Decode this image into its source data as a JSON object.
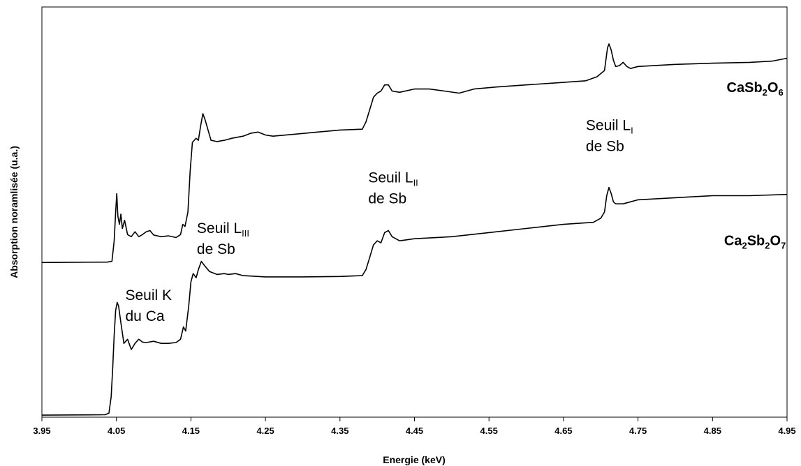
{
  "chart_data": {
    "type": "line",
    "title": "",
    "xlabel": "Energie (keV)",
    "ylabel": "Absorption noramlisée (u.a.)",
    "xlim": [
      3.95,
      4.95
    ],
    "ylim": [
      0,
      1
    ],
    "x_ticks": [
      "3.95",
      "4.05",
      "4.15",
      "4.25",
      "4.35",
      "4.45",
      "4.55",
      "4.65",
      "4.75",
      "4.85",
      "4.95"
    ],
    "grid": false,
    "y_tick_labels": false,
    "series": [
      {
        "name": "CaSb2O6",
        "label_parts": [
          [
            "CaSb",
            ""
          ],
          [
            "2",
            "sub"
          ],
          [
            "O",
            ""
          ],
          [
            "6",
            "sub"
          ]
        ],
        "points": [
          [
            3.95,
            0.377
          ],
          [
            4.038,
            0.378
          ],
          [
            4.044,
            0.38
          ],
          [
            4.047,
            0.43
          ],
          [
            4.049,
            0.5
          ],
          [
            4.0505,
            0.545
          ],
          [
            4.052,
            0.49
          ],
          [
            4.054,
            0.47
          ],
          [
            4.056,
            0.495
          ],
          [
            4.058,
            0.46
          ],
          [
            4.061,
            0.48
          ],
          [
            4.065,
            0.445
          ],
          [
            4.07,
            0.44
          ],
          [
            4.075,
            0.452
          ],
          [
            4.08,
            0.44
          ],
          [
            4.085,
            0.445
          ],
          [
            4.09,
            0.452
          ],
          [
            4.095,
            0.455
          ],
          [
            4.1,
            0.444
          ],
          [
            4.11,
            0.44
          ],
          [
            4.12,
            0.442
          ],
          [
            4.13,
            0.438
          ],
          [
            4.136,
            0.445
          ],
          [
            4.139,
            0.47
          ],
          [
            4.142,
            0.465
          ],
          [
            4.146,
            0.5
          ],
          [
            4.149,
            0.6
          ],
          [
            4.152,
            0.67
          ],
          [
            4.157,
            0.68
          ],
          [
            4.16,
            0.675
          ],
          [
            4.163,
            0.71
          ],
          [
            4.166,
            0.74
          ],
          [
            4.169,
            0.725
          ],
          [
            4.173,
            0.7
          ],
          [
            4.177,
            0.675
          ],
          [
            4.185,
            0.672
          ],
          [
            4.195,
            0.675
          ],
          [
            4.205,
            0.68
          ],
          [
            4.22,
            0.685
          ],
          [
            4.23,
            0.692
          ],
          [
            4.24,
            0.695
          ],
          [
            4.25,
            0.688
          ],
          [
            4.26,
            0.685
          ],
          [
            4.29,
            0.69
          ],
          [
            4.32,
            0.695
          ],
          [
            4.35,
            0.7
          ],
          [
            4.38,
            0.702
          ],
          [
            4.385,
            0.72
          ],
          [
            4.39,
            0.75
          ],
          [
            4.395,
            0.78
          ],
          [
            4.4,
            0.79
          ],
          [
            4.405,
            0.795
          ],
          [
            4.41,
            0.81
          ],
          [
            4.415,
            0.81
          ],
          [
            4.42,
            0.795
          ],
          [
            4.43,
            0.792
          ],
          [
            4.45,
            0.8
          ],
          [
            4.47,
            0.8
          ],
          [
            4.49,
            0.795
          ],
          [
            4.51,
            0.79
          ],
          [
            4.53,
            0.8
          ],
          [
            4.56,
            0.805
          ],
          [
            4.6,
            0.81
          ],
          [
            4.64,
            0.815
          ],
          [
            4.68,
            0.82
          ],
          [
            4.695,
            0.83
          ],
          [
            4.705,
            0.845
          ],
          [
            4.709,
            0.9
          ],
          [
            4.711,
            0.91
          ],
          [
            4.714,
            0.895
          ],
          [
            4.717,
            0.87
          ],
          [
            4.72,
            0.855
          ],
          [
            4.725,
            0.857
          ],
          [
            4.73,
            0.865
          ],
          [
            4.735,
            0.855
          ],
          [
            4.74,
            0.85
          ],
          [
            4.75,
            0.855
          ],
          [
            4.8,
            0.86
          ],
          [
            4.85,
            0.863
          ],
          [
            4.9,
            0.865
          ],
          [
            4.93,
            0.868
          ],
          [
            4.95,
            0.875
          ]
        ]
      },
      {
        "name": "Ca2Sb2O7",
        "label_parts": [
          [
            "Ca",
            ""
          ],
          [
            "2",
            "sub"
          ],
          [
            "Sb",
            ""
          ],
          [
            "2",
            "sub"
          ],
          [
            "O",
            ""
          ],
          [
            "7",
            "sub"
          ]
        ],
        "points": [
          [
            3.95,
            0.005
          ],
          [
            4.035,
            0.006
          ],
          [
            4.04,
            0.01
          ],
          [
            4.043,
            0.05
          ],
          [
            4.045,
            0.12
          ],
          [
            4.047,
            0.2
          ],
          [
            4.049,
            0.26
          ],
          [
            4.051,
            0.28
          ],
          [
            4.053,
            0.27
          ],
          [
            4.056,
            0.23
          ],
          [
            4.06,
            0.18
          ],
          [
            4.065,
            0.19
          ],
          [
            4.07,
            0.165
          ],
          [
            4.075,
            0.18
          ],
          [
            4.08,
            0.19
          ],
          [
            4.085,
            0.183
          ],
          [
            4.09,
            0.182
          ],
          [
            4.1,
            0.185
          ],
          [
            4.11,
            0.18
          ],
          [
            4.12,
            0.18
          ],
          [
            4.13,
            0.182
          ],
          [
            4.136,
            0.19
          ],
          [
            4.14,
            0.22
          ],
          [
            4.143,
            0.21
          ],
          [
            4.147,
            0.27
          ],
          [
            4.15,
            0.33
          ],
          [
            4.153,
            0.35
          ],
          [
            4.157,
            0.34
          ],
          [
            4.16,
            0.36
          ],
          [
            4.164,
            0.38
          ],
          [
            4.168,
            0.37
          ],
          [
            4.175,
            0.355
          ],
          [
            4.185,
            0.348
          ],
          [
            4.195,
            0.35
          ],
          [
            4.2,
            0.348
          ],
          [
            4.21,
            0.35
          ],
          [
            4.22,
            0.345
          ],
          [
            4.25,
            0.342
          ],
          [
            4.3,
            0.342
          ],
          [
            4.35,
            0.343
          ],
          [
            4.38,
            0.345
          ],
          [
            4.385,
            0.36
          ],
          [
            4.39,
            0.39
          ],
          [
            4.395,
            0.42
          ],
          [
            4.4,
            0.43
          ],
          [
            4.405,
            0.425
          ],
          [
            4.41,
            0.45
          ],
          [
            4.415,
            0.455
          ],
          [
            4.42,
            0.44
          ],
          [
            4.43,
            0.43
          ],
          [
            4.45,
            0.435
          ],
          [
            4.5,
            0.44
          ],
          [
            4.55,
            0.45
          ],
          [
            4.6,
            0.46
          ],
          [
            4.65,
            0.47
          ],
          [
            4.69,
            0.475
          ],
          [
            4.7,
            0.485
          ],
          [
            4.705,
            0.5
          ],
          [
            4.708,
            0.54
          ],
          [
            4.711,
            0.56
          ],
          [
            4.714,
            0.545
          ],
          [
            4.717,
            0.525
          ],
          [
            4.72,
            0.52
          ],
          [
            4.73,
            0.52
          ],
          [
            4.74,
            0.525
          ],
          [
            4.75,
            0.53
          ],
          [
            4.8,
            0.535
          ],
          [
            4.85,
            0.54
          ],
          [
            4.9,
            0.54
          ],
          [
            4.95,
            0.543
          ]
        ]
      }
    ],
    "annotations": [
      {
        "lines": [
          [
            [
              "Seuil K",
              ""
            ]
          ],
          [
            [
              "du Ca",
              ""
            ]
          ]
        ],
        "x": 4.062,
        "y": 0.286
      },
      {
        "lines": [
          [
            [
              "Seuil L",
              ""
            ],
            [
              "III",
              "sub"
            ]
          ],
          [
            [
              "de Sb",
              ""
            ]
          ]
        ],
        "x": 4.158,
        "y": 0.449
      },
      {
        "lines": [
          [
            [
              "Seuil L",
              ""
            ],
            [
              "II",
              "sub"
            ]
          ],
          [
            [
              "de Sb",
              ""
            ]
          ]
        ],
        "x": 4.388,
        "y": 0.5725
      },
      {
        "lines": [
          [
            [
              "Seuil L",
              ""
            ],
            [
              "I",
              "sub"
            ]
          ],
          [
            [
              "de Sb",
              ""
            ]
          ]
        ],
        "x": 4.68,
        "y": 0.6995
      }
    ]
  }
}
